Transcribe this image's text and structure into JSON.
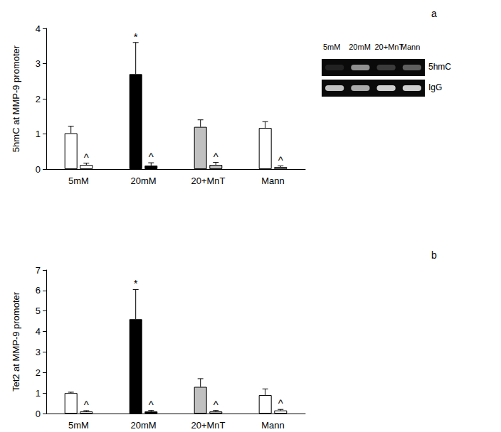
{
  "chart_data": [
    {
      "type": "bar",
      "title": "a",
      "ylabel": "5hmC at MMP-9 promoter",
      "categories": [
        "5mM",
        "20mM",
        "20+MnT",
        "Mann"
      ],
      "series": [
        {
          "values": [
            1.02,
            2.7,
            1.2,
            1.17
          ],
          "errors": [
            0.2,
            0.9,
            0.2,
            0.18
          ],
          "colors": [
            "#ffffff",
            "#000000",
            "#c0c0c0",
            "#ffffff"
          ],
          "annotations": [
            null,
            "*",
            null,
            null
          ]
        },
        {
          "values": [
            0.12,
            0.1,
            0.12,
            0.06
          ],
          "errors": [
            0.05,
            0.08,
            0.07,
            0.03
          ],
          "colors": [
            "#ffffff",
            "#000000",
            "#c0c0c0",
            "#ffffff"
          ],
          "annotations": [
            "^",
            "^",
            "^",
            "^"
          ]
        }
      ],
      "ylim": [
        0,
        4
      ],
      "yticks": [
        0,
        1,
        2,
        3,
        4
      ],
      "grid": false
    },
    {
      "type": "bar",
      "title": "b",
      "ylabel": "Tet2 at MMP-9 promoter",
      "categories": [
        "5mM",
        "20mM",
        "20+MnT",
        "Mann"
      ],
      "series": [
        {
          "values": [
            1.0,
            4.6,
            1.3,
            0.9
          ],
          "errors": [
            0.04,
            1.45,
            0.4,
            0.3
          ],
          "colors": [
            "#ffffff",
            "#000000",
            "#c0c0c0",
            "#ffffff"
          ],
          "annotations": [
            null,
            "*",
            null,
            null
          ]
        },
        {
          "values": [
            0.1,
            0.1,
            0.1,
            0.15
          ],
          "errors": [
            0.04,
            0.05,
            0.05,
            0.05
          ],
          "colors": [
            "#ffffff",
            "#000000",
            "#c0c0c0",
            "#ffffff"
          ],
          "annotations": [
            "^",
            "^",
            "^",
            "^"
          ]
        }
      ],
      "ylim": [
        0,
        7
      ],
      "yticks": [
        0,
        1,
        2,
        3,
        4,
        5,
        6,
        7
      ],
      "grid": false
    }
  ],
  "inset": {
    "lanes": [
      "5mM",
      "20mM",
      "20+MnT",
      "Mann"
    ],
    "rows": [
      "5hmC",
      "IgG"
    ],
    "band_intensity": [
      [
        0.1,
        0.55,
        0.2,
        0.35
      ],
      [
        0.75,
        0.65,
        0.8,
        0.8
      ]
    ]
  }
}
